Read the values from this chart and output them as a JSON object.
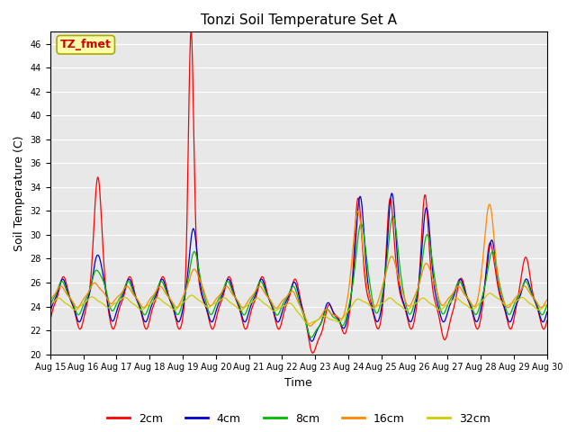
{
  "title": "Tonzi Soil Temperature Set A",
  "xlabel": "Time",
  "ylabel": "Soil Temperature (C)",
  "ylim": [
    20,
    47
  ],
  "yticks": [
    20,
    22,
    24,
    26,
    28,
    30,
    32,
    34,
    36,
    38,
    40,
    42,
    44,
    46
  ],
  "x_labels": [
    "Aug 15",
    "Aug 16",
    "Aug 17",
    "Aug 18",
    "Aug 19",
    "Aug 20",
    "Aug 21",
    "Aug 22",
    "Aug 23",
    "Aug 24",
    "Aug 25",
    "Aug 26",
    "Aug 27",
    "Aug 28",
    "Aug 29",
    "Aug 30"
  ],
  "annotation_text": "TZ_fmet",
  "annotation_color": "#cc0000",
  "annotation_bg": "#ffffaa",
  "annotation_edge": "#aaa800",
  "line_colors": {
    "2cm": "#ff0000",
    "4cm": "#0000cc",
    "8cm": "#00bb00",
    "16cm": "#ff8800",
    "32cm": "#cccc00"
  },
  "legend_labels": [
    "2cm",
    "4cm",
    "8cm",
    "16cm",
    "32cm"
  ],
  "plot_bg_color": "#e8e8e8",
  "grid_color": "#ffffff",
  "title_fontsize": 11,
  "axis_fontsize": 9,
  "tick_fontsize": 7
}
